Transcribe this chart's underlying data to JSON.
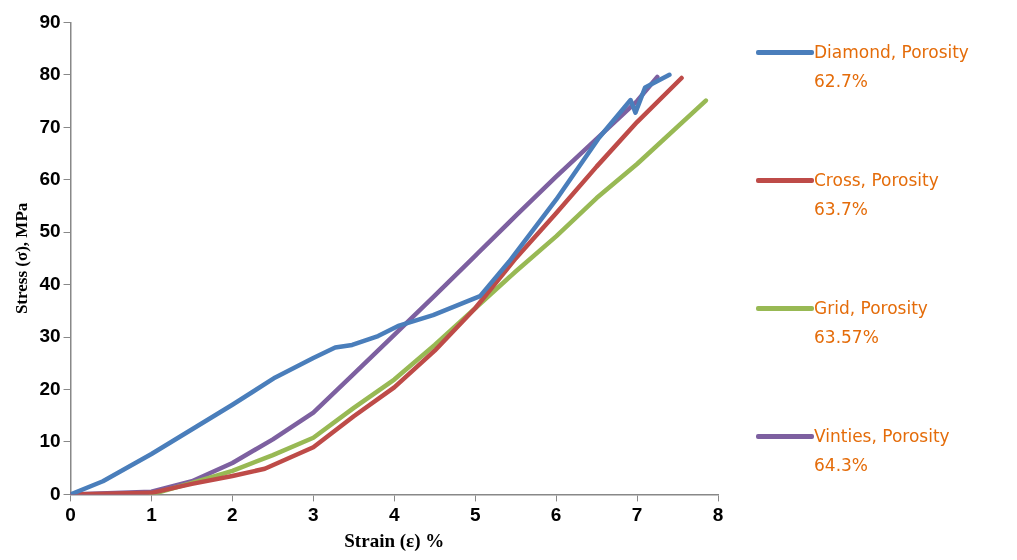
{
  "chart_data": {
    "type": "line",
    "xlabel": "Strain (ε) %",
    "ylabel": "Stress (σ), MPa",
    "xlim": [
      0,
      8
    ],
    "xticks": [
      0,
      1,
      2,
      3,
      4,
      5,
      6,
      7,
      8
    ],
    "ylim": [
      0,
      90
    ],
    "yticks": [
      0,
      10,
      20,
      30,
      40,
      50,
      60,
      70,
      80,
      90
    ],
    "grid": false,
    "legend": "right",
    "series": [
      {
        "name": "Diamond, Porosity 62.7%",
        "color": "#4a7ebb",
        "x": [
          0,
          0.4,
          1,
          2,
          2.53,
          3,
          3.27,
          3.48,
          3.8,
          4.06,
          4.48,
          5.06,
          5.42,
          6,
          6.53,
          6.92,
          6.98,
          7.1,
          7.4
        ],
        "values": [
          0,
          2.5,
          7.7,
          17.1,
          22.3,
          26,
          28,
          28.5,
          30.2,
          32.2,
          34.2,
          37.8,
          44.4,
          56.2,
          68,
          75.2,
          72.8,
          77.6,
          80
        ]
      },
      {
        "name": "Cross, Porosity 63.7%",
        "color": "#be4b48",
        "x": [
          0,
          1,
          1.5,
          2,
          2.4,
          3,
          3.5,
          4,
          4.5,
          5,
          5.5,
          6,
          6.5,
          7,
          7.55
        ],
        "values": [
          0,
          0.3,
          2,
          3.5,
          4.9,
          9,
          14.9,
          20.4,
          27.4,
          35.5,
          45,
          53.6,
          62.5,
          71,
          79.4
        ]
      },
      {
        "name": "Grid, Porosity 63.57%",
        "color": "#98b954",
        "x": [
          1,
          1.5,
          2,
          2.5,
          3,
          3.5,
          4,
          4.5,
          5,
          5.5,
          6,
          6.5,
          7,
          7.85
        ],
        "values": [
          0,
          2.2,
          4.5,
          7.5,
          10.8,
          16.5,
          21.9,
          28.5,
          35.5,
          42.5,
          49.2,
          56.5,
          63,
          75.1
        ]
      },
      {
        "name": "Vinties, Porosity 64.3%",
        "color": "#7d60a0",
        "x": [
          0,
          1,
          1.5,
          2,
          2.5,
          3,
          3.5,
          4,
          4.5,
          5,
          5.5,
          6,
          6.5,
          7,
          7.25
        ],
        "values": [
          0,
          0.5,
          2.5,
          6,
          10.5,
          15.6,
          23,
          30.4,
          37.9,
          45.5,
          53.1,
          60.6,
          67.8,
          75,
          79.6
        ]
      }
    ]
  }
}
